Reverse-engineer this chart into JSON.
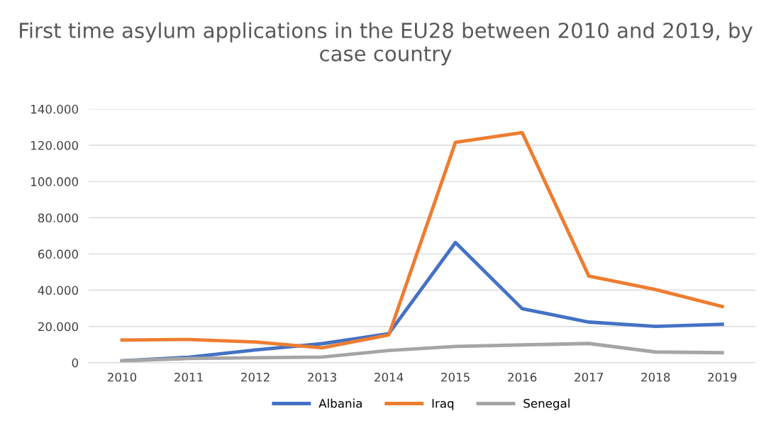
{
  "chart_data": {
    "type": "line",
    "title": "First time asylum applications in the EU28 between 2010 and 2019, by case country",
    "categories": [
      "2010",
      "2011",
      "2012",
      "2013",
      "2014",
      "2015",
      "2016",
      "2017",
      "2018",
      "2019"
    ],
    "series": [
      {
        "name": "Albania",
        "color": "#4472c4",
        "values": [
          1000,
          3000,
          7000,
          10500,
          16000,
          66300,
          29800,
          22400,
          20000,
          21200
        ]
      },
      {
        "name": "Iraq",
        "color": "#ed7d31",
        "values": [
          12500,
          12800,
          11400,
          8200,
          15300,
          121600,
          127000,
          47800,
          40400,
          31000
        ]
      },
      {
        "name": "Senegal",
        "color": "#a5a5a5",
        "values": [
          1000,
          2300,
          2700,
          3100,
          6700,
          9000,
          9800,
          10600,
          5900,
          5500
        ]
      }
    ],
    "ylim": [
      0,
      140000
    ],
    "yticks": [
      {
        "value": 0,
        "label": "0"
      },
      {
        "value": 20000,
        "label": "20.000"
      },
      {
        "value": 40000,
        "label": "40.000"
      },
      {
        "value": 60000,
        "label": "60.000"
      },
      {
        "value": 80000,
        "label": "80.000"
      },
      {
        "value": 100000,
        "label": "100.000"
      },
      {
        "value": 120000,
        "label": "120.000"
      },
      {
        "value": 140000,
        "label": "140.000"
      }
    ],
    "grid": "y",
    "legend": "bottom",
    "marker": "none",
    "line_style": "solid"
  }
}
